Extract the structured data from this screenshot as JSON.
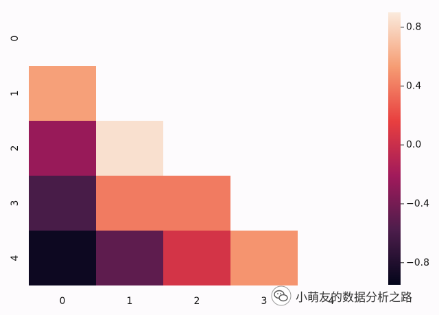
{
  "chart_data": {
    "type": "heatmap",
    "title": "",
    "xlabel": "",
    "ylabel": "",
    "x_ticks": [
      "0",
      "1",
      "2",
      "3",
      "4"
    ],
    "y_ticks": [
      "0",
      "1",
      "2",
      "3",
      "4"
    ],
    "mask": "upper-triangle-including-diagonal",
    "cells": [
      {
        "row": 1,
        "col": 0,
        "value": 0.55
      },
      {
        "row": 2,
        "col": 0,
        "value": -0.25
      },
      {
        "row": 2,
        "col": 1,
        "value": 0.85
      },
      {
        "row": 3,
        "col": 0,
        "value": -0.6
      },
      {
        "row": 3,
        "col": 1,
        "value": 0.4
      },
      {
        "row": 3,
        "col": 2,
        "value": 0.4
      },
      {
        "row": 4,
        "col": 0,
        "value": -0.9
      },
      {
        "row": 4,
        "col": 1,
        "value": -0.5
      },
      {
        "row": 4,
        "col": 2,
        "value": 0.05
      },
      {
        "row": 4,
        "col": 3,
        "value": 0.5
      }
    ],
    "colorbar": {
      "vmin": -0.95,
      "vmax": 0.9,
      "ticks": [
        0.8,
        0.4,
        0.0,
        -0.4,
        -0.8
      ],
      "tick_labels": [
        "0.8",
        "0.4",
        "0.0",
        "−0.4",
        "−0.8"
      ],
      "colormap": "rocket",
      "stops": [
        "#03051a",
        "#4c1d4b",
        "#a11a5b",
        "#e83f3f",
        "#f69c73",
        "#faebdd"
      ]
    },
    "grid": false
  },
  "watermark": {
    "text": "小萌友的数据分析之路",
    "icon": "wechat-icon"
  }
}
